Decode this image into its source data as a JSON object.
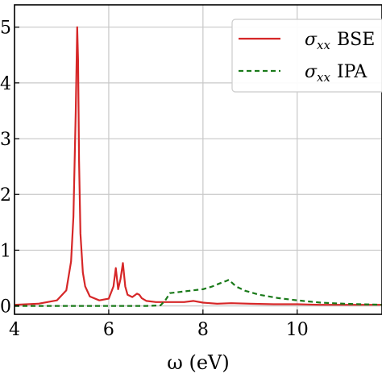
{
  "chart_data": {
    "type": "line",
    "xlabel": "ω (eV)",
    "ylabel": "",
    "xlim": [
      4,
      11.8
    ],
    "ylim": [
      -0.15,
      5.4
    ],
    "grid": true,
    "legend_position": "top-right",
    "x_ticks": [
      {
        "value": 4,
        "label": "4"
      },
      {
        "value": 6,
        "label": "6"
      },
      {
        "value": 8,
        "label": "8"
      },
      {
        "value": 10,
        "label": "10"
      }
    ],
    "y_ticks": [
      {
        "value": 0,
        "label": "0"
      },
      {
        "value": 1,
        "label": "1"
      },
      {
        "value": 2,
        "label": "2"
      },
      {
        "value": 3,
        "label": "3"
      },
      {
        "value": 4,
        "label": "4"
      },
      {
        "value": 5,
        "label": "5"
      }
    ],
    "series": [
      {
        "name": "σxx BSE",
        "name_symbol": "σ",
        "name_sub": "xx",
        "name_suffix": "BSE",
        "color": "#d62728",
        "style": "solid",
        "x": [
          4.0,
          4.5,
          4.9,
          5.1,
          5.2,
          5.25,
          5.3,
          5.33,
          5.35,
          5.37,
          5.4,
          5.45,
          5.5,
          5.6,
          5.8,
          6.0,
          6.1,
          6.15,
          6.2,
          6.25,
          6.3,
          6.35,
          6.4,
          6.5,
          6.6,
          6.65,
          6.7,
          6.8,
          7.0,
          7.3,
          7.6,
          7.8,
          8.0,
          8.3,
          8.6,
          9.0,
          9.5,
          10.0,
          10.5,
          11.0,
          11.8
        ],
        "y": [
          0.02,
          0.04,
          0.1,
          0.28,
          0.8,
          1.6,
          3.5,
          5.0,
          4.4,
          2.6,
          1.3,
          0.6,
          0.35,
          0.17,
          0.1,
          0.13,
          0.35,
          0.68,
          0.3,
          0.48,
          0.77,
          0.35,
          0.2,
          0.16,
          0.22,
          0.2,
          0.14,
          0.09,
          0.07,
          0.07,
          0.07,
          0.09,
          0.06,
          0.04,
          0.05,
          0.04,
          0.03,
          0.03,
          0.02,
          0.02,
          0.02
        ]
      },
      {
        "name": "σxx IPA",
        "name_symbol": "σ",
        "name_sub": "xx",
        "name_suffix": "IPA",
        "color": "#1a7a1a",
        "style": "dashed",
        "x": [
          4.0,
          5.0,
          6.0,
          6.8,
          7.1,
          7.2,
          7.3,
          7.5,
          7.8,
          8.0,
          8.2,
          8.4,
          8.5,
          8.55,
          8.6,
          8.7,
          8.9,
          9.2,
          9.6,
          10.0,
          10.5,
          11.0,
          11.8
        ],
        "y": [
          0.0,
          0.0,
          0.0,
          0.0,
          0.01,
          0.1,
          0.23,
          0.25,
          0.28,
          0.3,
          0.35,
          0.42,
          0.45,
          0.47,
          0.43,
          0.35,
          0.27,
          0.2,
          0.14,
          0.1,
          0.06,
          0.04,
          0.02
        ]
      }
    ]
  }
}
